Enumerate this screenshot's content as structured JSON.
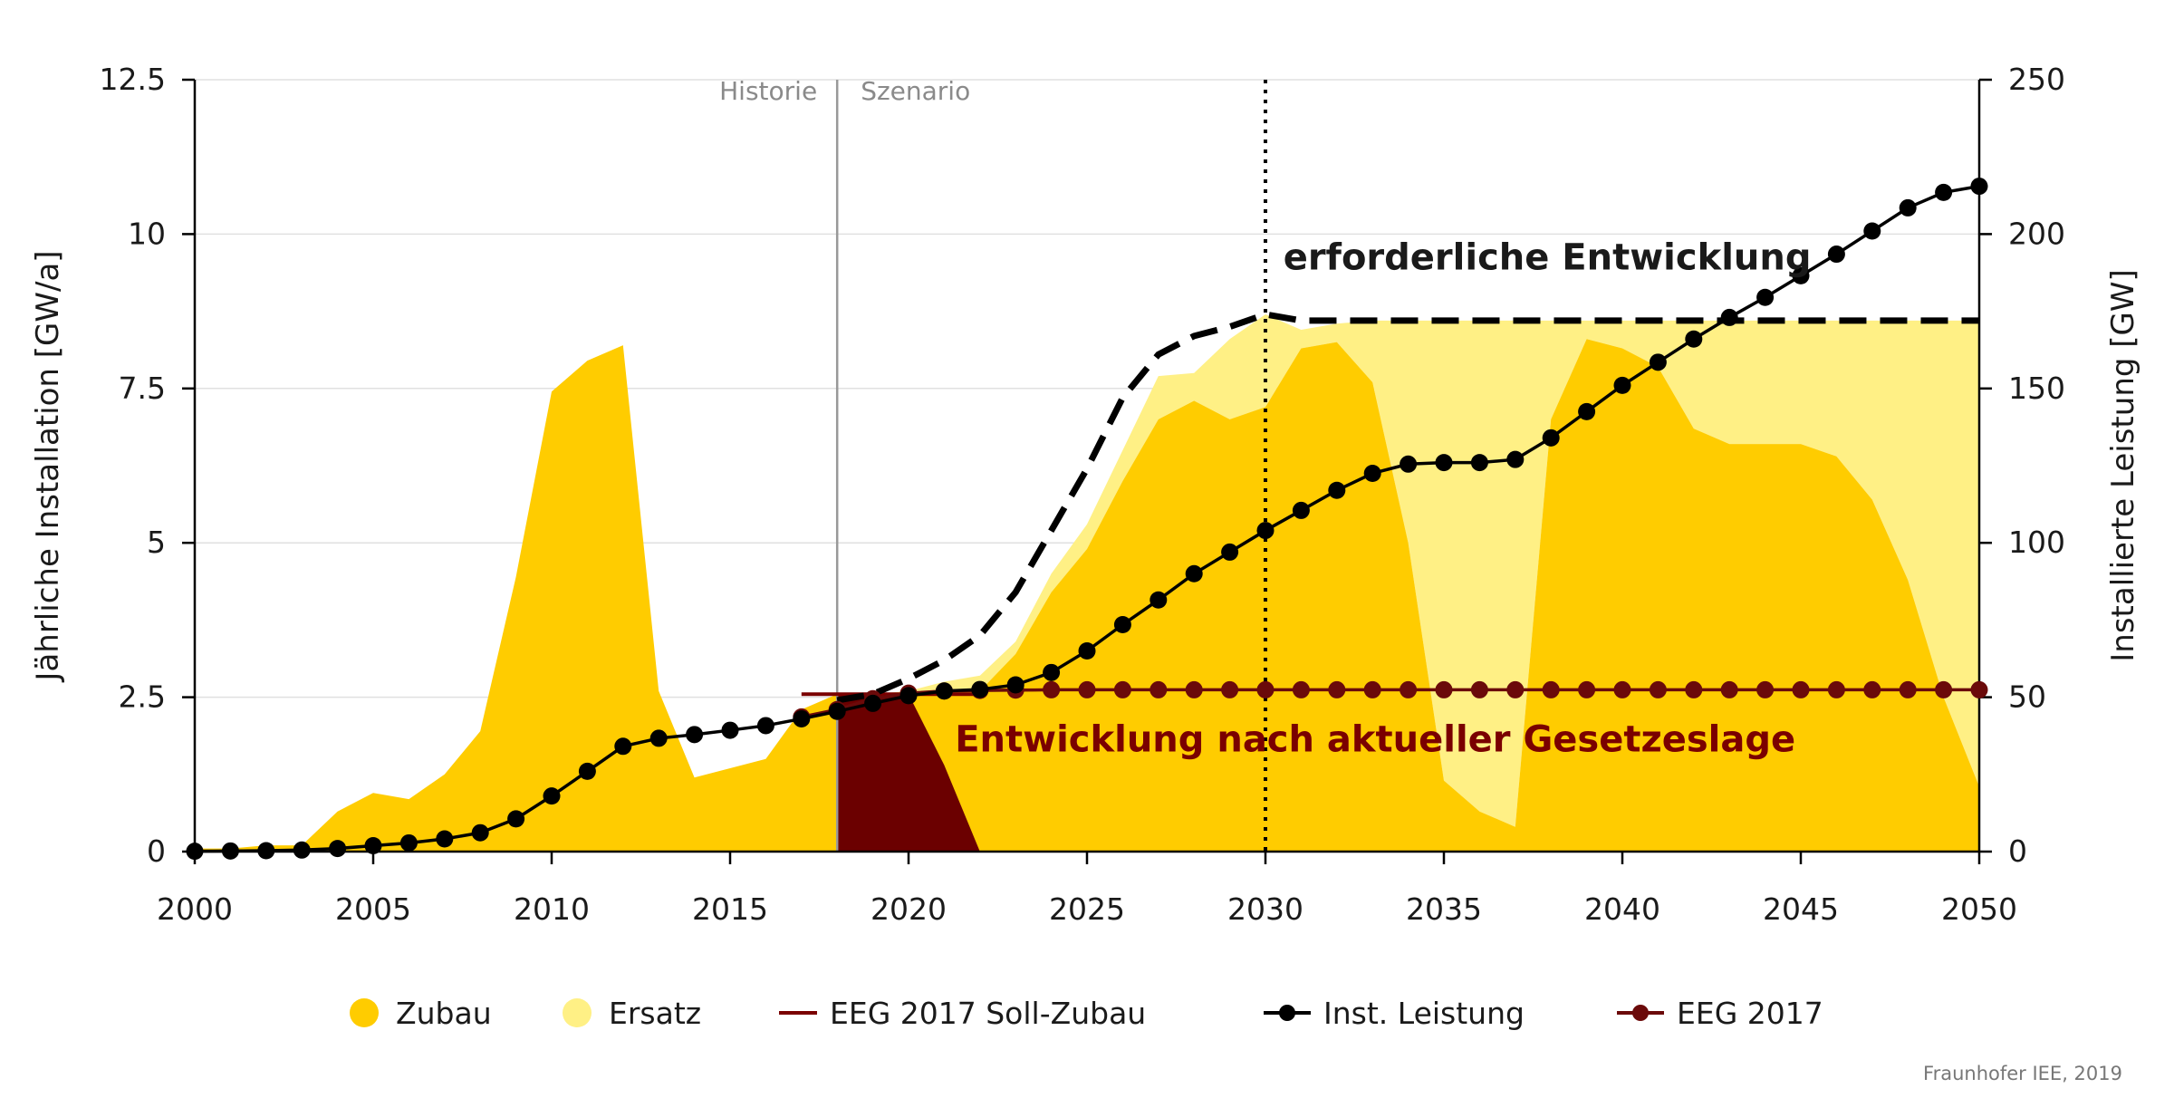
{
  "chart_data": {
    "type": "area",
    "x": [
      2000,
      2001,
      2002,
      2003,
      2004,
      2005,
      2006,
      2007,
      2008,
      2009,
      2010,
      2011,
      2012,
      2013,
      2014,
      2015,
      2016,
      2017,
      2018,
      2019,
      2020,
      2021,
      2022,
      2023,
      2024,
      2025,
      2026,
      2027,
      2028,
      2029,
      2030,
      2031,
      2032,
      2033,
      2034,
      2035,
      2036,
      2037,
      2038,
      2039,
      2040,
      2041,
      2042,
      2043,
      2044,
      2045,
      2046,
      2047,
      2048,
      2049,
      2050
    ],
    "xlim": [
      2000,
      2050
    ],
    "xticks": [
      "2000",
      "2005",
      "2010",
      "2015",
      "2020",
      "2025",
      "2030",
      "2035",
      "2040",
      "2045",
      "2050"
    ],
    "y_left": {
      "label": "Jährliche Installation [GW/a]",
      "lim": [
        0,
        12.5
      ],
      "ticks": [
        "0",
        "2.5",
        "5",
        "7.5",
        "10",
        "12.5"
      ]
    },
    "y_right": {
      "label": "Installierte Leistung [GW]",
      "lim": [
        0,
        250
      ],
      "ticks": [
        "0",
        "50",
        "100",
        "150",
        "200",
        "250"
      ]
    },
    "series": [
      {
        "name": "Zubau",
        "axis": "left",
        "color": "#FFCC00",
        "values": [
          0.05,
          0.05,
          0.1,
          0.1,
          0.65,
          0.95,
          0.85,
          1.25,
          1.95,
          4.45,
          7.45,
          7.95,
          8.2,
          2.6,
          1.2,
          1.35,
          1.5,
          2.3,
          2.55,
          2.5,
          2.5,
          2.6,
          2.6,
          3.2,
          4.2,
          4.9,
          6.0,
          7.0,
          7.3,
          7.0,
          7.2,
          8.15,
          8.25,
          7.6,
          5.0,
          1.15,
          0.65,
          0.4,
          7.0,
          8.3,
          8.15,
          7.85,
          6.85,
          6.6,
          6.6,
          6.6,
          6.4,
          5.7,
          4.4,
          2.5,
          1.05
        ]
      },
      {
        "name": "Ersatz",
        "axis": "left",
        "color": "#FFF085",
        "values": [
          0,
          0,
          0,
          0,
          0,
          0,
          0,
          0,
          0,
          0,
          0,
          0,
          0,
          0,
          0,
          0,
          0,
          0,
          0,
          0.05,
          0.1,
          0.15,
          0.25,
          0.2,
          0.3,
          0.4,
          0.5,
          0.7,
          0.45,
          1.3,
          1.5,
          0.3,
          0.3,
          1.0,
          3.6,
          7.45,
          7.95,
          8.2,
          1.6,
          0.3,
          0.45,
          0.75,
          1.75,
          2.0,
          2.0,
          2.0,
          2.2,
          2.9,
          4.2,
          6.1,
          7.55
        ]
      },
      {
        "name": "EEG 2017 Soll-Zubau",
        "axis": "left",
        "color": "#7A0000",
        "x_range": [
          2017,
          2022
        ],
        "value": 2.55
      },
      {
        "name": "Inst. Leistung",
        "axis": "right",
        "color": "#000000",
        "values": [
          0.1,
          0.2,
          0.3,
          0.5,
          1.0,
          1.9,
          2.8,
          4.1,
          6.1,
          10.6,
          18.0,
          26.0,
          34.1,
          36.7,
          37.9,
          39.3,
          40.8,
          43.0,
          45.4,
          48.0,
          50.5,
          52.0,
          52.5,
          54.0,
          58.0,
          65.0,
          73.5,
          81.5,
          90.0,
          97.0,
          104.0,
          110.5,
          117.0,
          122.5,
          125.5,
          126.0,
          126.0,
          127.0,
          134.0,
          142.5,
          151.0,
          158.5,
          166.0,
          173.0,
          179.5,
          186.5,
          193.5,
          201.0,
          208.5,
          213.5,
          215.5
        ]
      },
      {
        "name": "EEG 2017",
        "axis": "right",
        "color": "#6B0A0A",
        "values": [
          null,
          null,
          null,
          null,
          null,
          null,
          null,
          null,
          null,
          null,
          null,
          null,
          null,
          null,
          null,
          null,
          null,
          43.6,
          46.0,
          49.5,
          51.3,
          52.0,
          52.2,
          52.3,
          52.4,
          52.4,
          52.4,
          52.4,
          52.4,
          52.4,
          52.4,
          52.4,
          52.4,
          52.4,
          52.4,
          52.4,
          52.4,
          52.4,
          52.4,
          52.4,
          52.4,
          52.4,
          52.4,
          52.4,
          52.4,
          52.4,
          52.4,
          52.4,
          52.4,
          52.4,
          52.4
        ]
      },
      {
        "name": "EEG 2017 Zubau",
        "axis": "left",
        "color": "#6B0000",
        "points": [
          [
            2018,
            0
          ],
          [
            2018,
            2.55
          ],
          [
            2020,
            2.55
          ],
          [
            2021,
            1.4
          ],
          [
            2022,
            0
          ]
        ]
      },
      {
        "name": "erforderliche Entwicklung",
        "axis": "left",
        "style": "dashed",
        "color": "#000000",
        "points": [
          [
            2018,
            2.45
          ],
          [
            2019,
            2.55
          ],
          [
            2020,
            2.8
          ],
          [
            2021,
            3.1
          ],
          [
            2022,
            3.5
          ],
          [
            2023,
            4.2
          ],
          [
            2024,
            5.2
          ],
          [
            2025,
            6.2
          ],
          [
            2026,
            7.35
          ],
          [
            2027,
            8.05
          ],
          [
            2028,
            8.35
          ],
          [
            2029,
            8.5
          ],
          [
            2030,
            8.7
          ],
          [
            2031,
            8.6
          ],
          [
            2032,
            8.6
          ],
          [
            2050,
            8.6
          ]
        ]
      }
    ],
    "reference_lines": [
      {
        "x": 2018,
        "color": "#999999",
        "label_left": "Historie",
        "label_right": "Szenario"
      },
      {
        "x": 2030,
        "color": "#000000",
        "style": "dotted"
      }
    ],
    "annotations": [
      {
        "text": "erforderliche Entwicklung",
        "x": 2030.5,
        "y": 9.6,
        "color": "#1a1a1a"
      },
      {
        "text": "Entwicklung nach aktueller Gesetzeslage",
        "x": 2021.3,
        "y": 1.8,
        "color": "#7A0000"
      }
    ],
    "legend": {
      "placement": "bottom",
      "items": [
        {
          "label": "Zubau",
          "marker": "dot",
          "color": "#FFCC00"
        },
        {
          "label": "Ersatz",
          "marker": "dot",
          "color": "#FFF085"
        },
        {
          "label": "EEG 2017 Soll-Zubau",
          "marker": "line",
          "color": "#7A0000"
        },
        {
          "label": "Inst. Leistung",
          "marker": "line-dot",
          "color": "#000000"
        },
        {
          "label": "EEG 2017",
          "marker": "line-dot",
          "color": "#6B0A0A"
        }
      ]
    },
    "credit": "Fraunhofer IEE, 2019"
  }
}
